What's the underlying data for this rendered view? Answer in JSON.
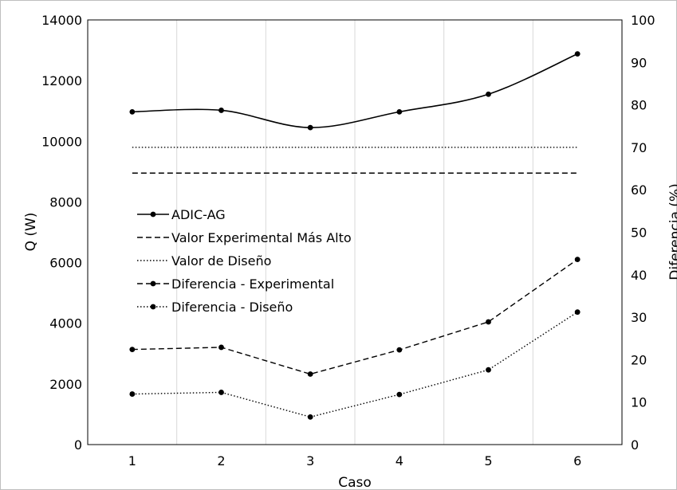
{
  "chart_data": {
    "type": "line",
    "xlabel": "Caso",
    "ylabel": "Q (W)",
    "y2label": "Diferencia (%)",
    "categories": [
      "1",
      "2",
      "3",
      "4",
      "5",
      "6"
    ],
    "ylim": [
      0,
      14000
    ],
    "y2lim": [
      0,
      100
    ],
    "yticks": [
      "0",
      "2000",
      "4000",
      "6000",
      "8000",
      "10000",
      "12000",
      "14000"
    ],
    "y2ticks": [
      "0",
      "10",
      "20",
      "30",
      "40",
      "50",
      "60",
      "70",
      "80",
      "90",
      "100"
    ],
    "grid": "vertical",
    "legend_position": "left-middle",
    "series": [
      {
        "name": "ADIC-AG",
        "axis": "left",
        "style": "solid",
        "markers": true,
        "values": [
          10970,
          11020,
          10450,
          10970,
          11550,
          12880
        ]
      },
      {
        "name": "Valor Experimental Más Alto",
        "axis": "left",
        "style": "dashed",
        "markers": false,
        "values": [
          8950,
          8950,
          8950,
          8950,
          8950,
          8950
        ]
      },
      {
        "name": "Valor de Diseño",
        "axis": "left",
        "style": "dotted",
        "markers": false,
        "values": [
          9800,
          9800,
          9800,
          9800,
          9800,
          9800
        ]
      },
      {
        "name": "Diferencia - Experimental",
        "axis": "right",
        "style": "dashed",
        "markers": true,
        "values": [
          22.4,
          22.9,
          16.6,
          22.3,
          28.9,
          43.6
        ]
      },
      {
        "name": "Diferencia - Diseño",
        "axis": "right",
        "style": "dotted",
        "markers": true,
        "values": [
          11.9,
          12.3,
          6.5,
          11.8,
          17.6,
          31.2
        ]
      }
    ]
  }
}
